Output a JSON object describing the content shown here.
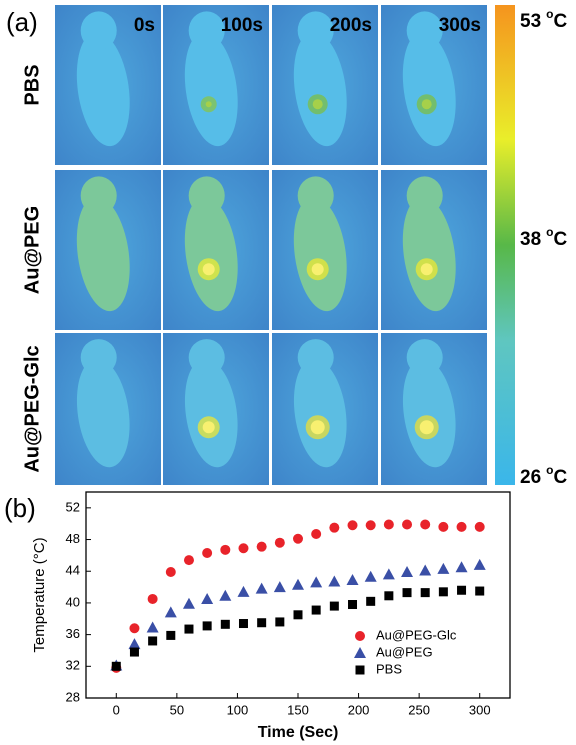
{
  "panel_a": {
    "label": "(a)",
    "times": [
      "0s",
      "100s",
      "200s",
      "300s"
    ],
    "rows": [
      "PBS",
      "Au@PEG",
      "Au@PEG-Glc"
    ],
    "colorbar": {
      "ticks": [
        53,
        38,
        26
      ],
      "unit_sup": "o",
      "unit": "C"
    }
  },
  "chart_data": {
    "type": "scatter",
    "label": "(b)",
    "x_label": "Time (Sec)",
    "y_label": "Temperature (°C)",
    "x": [
      0,
      15,
      30,
      45,
      60,
      75,
      90,
      105,
      120,
      135,
      150,
      165,
      180,
      195,
      210,
      225,
      240,
      255,
      270,
      285,
      300
    ],
    "series": [
      {
        "name": "Au@PEG-Glc",
        "color": "#e8232a",
        "marker": "circle",
        "values": [
          31.8,
          36.8,
          40.5,
          43.9,
          45.4,
          46.3,
          46.7,
          46.9,
          47.1,
          47.6,
          48.1,
          48.7,
          49.5,
          49.8,
          49.8,
          49.9,
          49.9,
          49.9,
          49.6,
          49.6,
          49.6
        ]
      },
      {
        "name": "Au@PEG",
        "color": "#3a4fa6",
        "marker": "triangle",
        "values": [
          32.1,
          34.8,
          36.9,
          38.8,
          39.9,
          40.5,
          40.9,
          41.4,
          41.8,
          42.0,
          42.3,
          42.6,
          42.7,
          42.9,
          43.3,
          43.6,
          43.9,
          44.1,
          44.3,
          44.5,
          44.8
        ]
      },
      {
        "name": "PBS",
        "color": "#000000",
        "marker": "square",
        "values": [
          32.0,
          33.8,
          35.2,
          35.9,
          36.7,
          37.1,
          37.3,
          37.4,
          37.5,
          37.6,
          38.5,
          39.1,
          39.6,
          39.8,
          40.2,
          40.9,
          41.3,
          41.3,
          41.4,
          41.6,
          41.5
        ]
      }
    ],
    "xlim": [
      -25,
      325
    ],
    "xticks": [
      0,
      50,
      100,
      150,
      200,
      250,
      300
    ],
    "ylim": [
      28,
      54
    ],
    "yticks": [
      28,
      32,
      36,
      40,
      44,
      48,
      52
    ],
    "legend": "lower right"
  }
}
